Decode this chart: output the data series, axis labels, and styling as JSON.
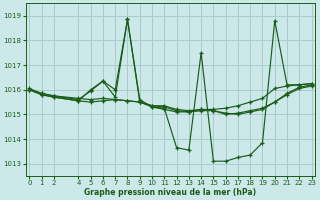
{
  "title": "Graphe pression niveau de la mer (hPa)",
  "bg_color": "#cce8e8",
  "grid_color": "#aacccc",
  "line_color": "#1a5c1a",
  "xlim": [
    -0.3,
    23.3
  ],
  "ylim": [
    1012.5,
    1019.5
  ],
  "yticks": [
    1013,
    1014,
    1015,
    1016,
    1017,
    1018,
    1019
  ],
  "xticks": [
    0,
    1,
    2,
    4,
    5,
    6,
    7,
    8,
    9,
    10,
    11,
    12,
    13,
    14,
    15,
    16,
    17,
    18,
    19,
    20,
    21,
    22,
    23
  ],
  "series1_x": [
    0,
    1,
    2,
    4,
    5,
    6,
    7,
    8,
    9,
    10,
    11,
    12,
    13,
    14,
    15,
    16,
    17,
    18,
    19,
    20,
    21,
    22,
    23
  ],
  "series1_y": [
    1016.0,
    1015.85,
    1015.75,
    1015.6,
    1015.95,
    1016.35,
    1016.0,
    1018.85,
    1015.6,
    1015.3,
    1015.2,
    1015.1,
    1015.1,
    1015.2,
    1015.2,
    1015.25,
    1015.35,
    1015.5,
    1015.65,
    1016.05,
    1016.15,
    1016.2,
    1016.25
  ],
  "series2_x": [
    0,
    1,
    2,
    4,
    5,
    6,
    7,
    8,
    9,
    10,
    11,
    12,
    13,
    14,
    15,
    16,
    17,
    18,
    19,
    20,
    21,
    22,
    23
  ],
  "series2_y": [
    1016.05,
    1015.85,
    1015.75,
    1015.65,
    1015.6,
    1015.65,
    1015.6,
    1015.55,
    1015.5,
    1015.35,
    1015.3,
    1015.15,
    1015.1,
    1015.15,
    1015.15,
    1015.0,
    1015.05,
    1015.15,
    1015.25,
    1015.5,
    1015.85,
    1016.1,
    1016.2
  ],
  "series3_x": [
    0,
    1,
    2,
    4,
    5,
    6,
    7,
    8,
    9,
    10,
    11,
    12,
    13,
    14,
    15,
    16,
    17,
    18,
    19,
    20,
    21,
    22,
    23
  ],
  "series3_y": [
    1016.0,
    1015.8,
    1015.7,
    1015.55,
    1016.0,
    1016.35,
    1015.7,
    1018.85,
    1015.5,
    1015.3,
    1015.25,
    1013.65,
    1013.55,
    1017.5,
    1013.1,
    1013.1,
    1013.25,
    1013.35,
    1013.85,
    1018.8,
    1016.2,
    1016.2,
    1016.25
  ],
  "series4_x": [
    0,
    1,
    2,
    4,
    5,
    6,
    7,
    8,
    9,
    10,
    11,
    12,
    13,
    14,
    15,
    16,
    17,
    18,
    19,
    20,
    21,
    22,
    23
  ],
  "series4_y": [
    1016.0,
    1015.8,
    1015.7,
    1015.55,
    1015.5,
    1015.55,
    1015.6,
    1015.55,
    1015.5,
    1015.35,
    1015.35,
    1015.2,
    1015.15,
    1015.2,
    1015.15,
    1015.05,
    1015.0,
    1015.1,
    1015.2,
    1015.5,
    1015.8,
    1016.05,
    1016.15
  ]
}
